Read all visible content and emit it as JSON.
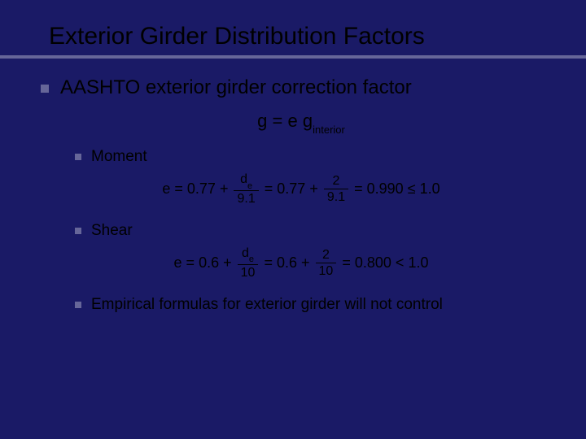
{
  "slide": {
    "title": "Exterior Girder Distribution Factors",
    "background_color": "#1a1a66",
    "text_color": "#000000",
    "bullet_color": "#666699",
    "underline_color": "#666699",
    "title_fontsize": 30,
    "l1_fontsize": 24,
    "l2_fontsize": 19,
    "eq_fontsize": 18,
    "level1": "AASHTO exterior girder correction factor",
    "main_equation": {
      "lhs": "g",
      "rhs_coeff": "e",
      "rhs_var": "g",
      "rhs_sub": "interior"
    },
    "items": {
      "moment": {
        "label": "Moment",
        "lhs": "e",
        "c1": "0.77",
        "num1": "d",
        "num1_sub": "e",
        "den1": "9.1",
        "c2": "0.77",
        "num2": "2",
        "den2": "9.1",
        "result": "0.990",
        "cmp": "≤",
        "bound": "1.0"
      },
      "shear": {
        "label": "Shear",
        "lhs": "e",
        "c1": "0.6",
        "num1": "d",
        "num1_sub": "e",
        "den1": "10",
        "c2": "0.6",
        "num2": "2",
        "den2": "10",
        "result": "0.800",
        "cmp": "<",
        "bound": "1.0"
      },
      "note": "Empirical formulas for exterior girder will not control"
    }
  }
}
